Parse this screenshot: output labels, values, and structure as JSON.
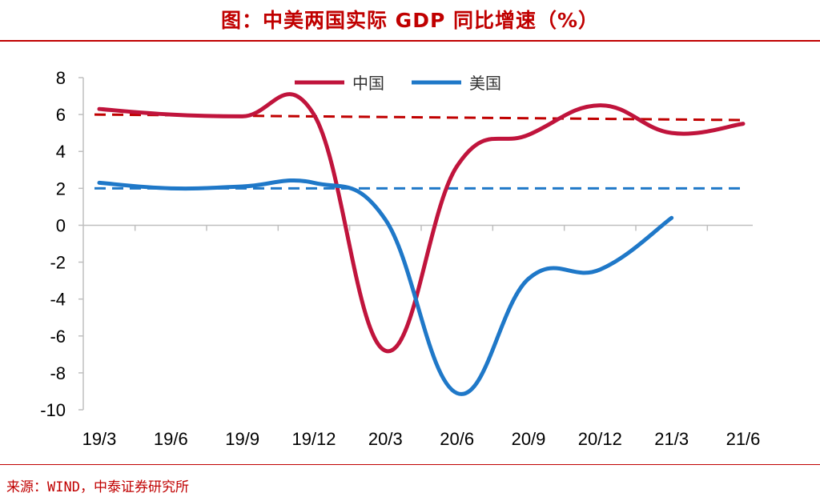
{
  "header": {
    "title": "图：中美两国实际 GDP 同比增速（%）"
  },
  "footer": {
    "source": "来源：WIND，中泰证券研究所"
  },
  "chart_data": {
    "type": "line",
    "title": "图：中美两国实际 GDP 同比增速（%）",
    "xlabel": "",
    "ylabel": "",
    "categories": [
      "19/3",
      "19/6",
      "19/9",
      "19/12",
      "20/3",
      "20/6",
      "20/9",
      "20/12",
      "21/3",
      "21/6"
    ],
    "yticks": [
      "8",
      "6",
      "4",
      "2",
      "0",
      "-2",
      "-4",
      "-6",
      "-8",
      "-10"
    ],
    "ylim": [
      -10,
      8
    ],
    "grid": false,
    "legend": "top-center",
    "series": [
      {
        "name": "中国",
        "color": "#C0143C",
        "values": [
          6.3,
          6.0,
          5.9,
          6.0,
          -6.8,
          3.2,
          4.9,
          6.5,
          5.0,
          5.5
        ]
      },
      {
        "name": "美国",
        "color": "#1F78C8",
        "values": [
          2.3,
          2.0,
          2.1,
          2.3,
          0.3,
          -9.1,
          -2.9,
          -2.4,
          0.4,
          null
        ]
      }
    ],
    "reference_lines": [
      {
        "series": "中国",
        "color": "#C00000",
        "start": 6.0,
        "end": 5.7
      },
      {
        "series": "美国",
        "color": "#1F78C8",
        "start": 2.0,
        "end": 2.0
      }
    ]
  }
}
